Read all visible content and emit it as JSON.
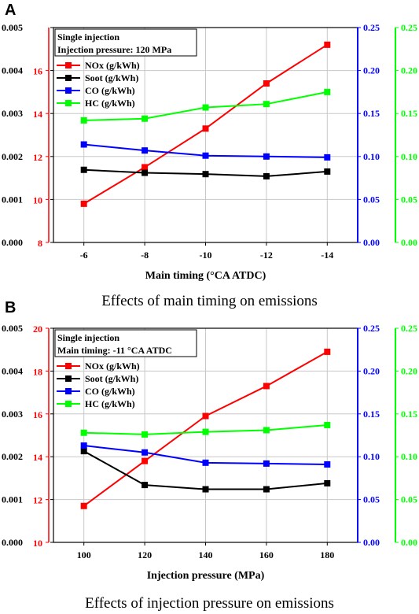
{
  "panels": [
    {
      "letter": "A",
      "caption": "Effects of main timing on emissions",
      "annotation": [
        "Single injection",
        "Injection pressure: 120 MPa"
      ]
    },
    {
      "letter": "B",
      "caption": "Effects of injection pressure on emissions",
      "annotation": [
        "Single injection",
        "Main timing: -11 °CA ATDC"
      ]
    }
  ],
  "colors": {
    "nox": "#ff0000",
    "soot": "#000000",
    "co": "#0000ff",
    "hc": "#00ff00"
  },
  "chart_data": [
    {
      "type": "line",
      "xlabel": "Main timing (°CA ATDC)",
      "categories": [
        "-6",
        "-8",
        "-10",
        "-12",
        "-14"
      ],
      "grid": true,
      "legend_position": "top-left",
      "axes": {
        "left_soot": {
          "ylim": [
            0.0,
            0.005
          ],
          "ticks": [
            "0.000",
            "0.001",
            "0.002",
            "0.003",
            "0.004",
            "0.005"
          ],
          "color": "#000000"
        },
        "left_nox": {
          "ylim": [
            8,
            18
          ],
          "ticks": [
            "8",
            "10",
            "12",
            "14",
            "16"
          ],
          "color": "#ff0000"
        },
        "right_co": {
          "ylim": [
            0.0,
            0.25
          ],
          "ticks": [
            "0.00",
            "0.05",
            "0.10",
            "0.15",
            "0.20",
            "0.25"
          ],
          "color": "#0000ff"
        },
        "right_hc": {
          "ylim": [
            0.0,
            0.25
          ],
          "ticks": [
            "0.00",
            "0.05",
            "0.10",
            "0.15",
            "0.20",
            "0.25"
          ],
          "color": "#00ff00"
        }
      },
      "series": [
        {
          "name": "NOx (g/kWh)",
          "axis": "left_nox",
          "color": "#ff0000",
          "values": [
            9.8,
            11.5,
            13.3,
            15.4,
            17.2
          ]
        },
        {
          "name": "Soot (g/kWh)",
          "axis": "left_soot",
          "color": "#000000",
          "values": [
            0.00169,
            0.00162,
            0.00159,
            0.00154,
            0.00165
          ]
        },
        {
          "name": "CO (g/kWh)",
          "axis": "right_co",
          "color": "#0000ff",
          "values": [
            0.114,
            0.107,
            0.101,
            0.1,
            0.099
          ]
        },
        {
          "name": "HC (g/kWh)",
          "axis": "right_hc",
          "color": "#00ff00",
          "values": [
            0.142,
            0.144,
            0.157,
            0.161,
            0.175
          ]
        }
      ]
    },
    {
      "type": "line",
      "xlabel": "Injection pressure (MPa)",
      "categories": [
        "100",
        "120",
        "140",
        "160",
        "180"
      ],
      "grid": true,
      "legend_position": "top-left",
      "axes": {
        "left_soot": {
          "ylim": [
            0.0,
            0.005
          ],
          "ticks": [
            "0.000",
            "0.001",
            "0.002",
            "0.003",
            "0.004",
            "0.005"
          ],
          "color": "#000000"
        },
        "left_nox": {
          "ylim": [
            10,
            20
          ],
          "ticks": [
            "10",
            "12",
            "14",
            "16",
            "18",
            "20"
          ],
          "color": "#ff0000"
        },
        "right_co": {
          "ylim": [
            0.0,
            0.25
          ],
          "ticks": [
            "0.00",
            "0.05",
            "0.10",
            "0.15",
            "0.20",
            "0.25"
          ],
          "color": "#0000ff"
        },
        "right_hc": {
          "ylim": [
            0.0,
            0.25
          ],
          "ticks": [
            "0.00",
            "0.05",
            "0.10",
            "0.15",
            "0.20",
            "0.25"
          ],
          "color": "#00ff00"
        }
      },
      "series": [
        {
          "name": "NOx (g/kWh)",
          "axis": "left_nox",
          "color": "#ff0000",
          "values": [
            11.7,
            13.8,
            15.9,
            17.3,
            18.9
          ]
        },
        {
          "name": "Soot (g/kWh)",
          "axis": "left_soot",
          "color": "#000000",
          "values": [
            0.00213,
            0.00134,
            0.00124,
            0.00124,
            0.00138
          ]
        },
        {
          "name": "CO (g/kWh)",
          "axis": "right_co",
          "color": "#0000ff",
          "values": [
            0.113,
            0.105,
            0.093,
            0.092,
            0.091
          ]
        },
        {
          "name": "HC (g/kWh)",
          "axis": "right_hc",
          "color": "#00ff00",
          "values": [
            0.128,
            0.126,
            0.129,
            0.131,
            0.137
          ]
        }
      ]
    }
  ]
}
